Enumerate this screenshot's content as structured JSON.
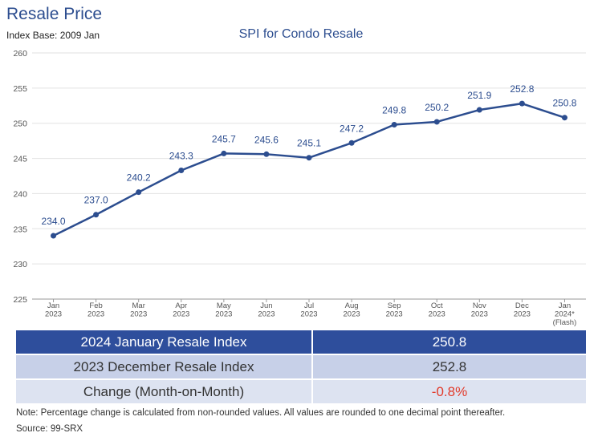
{
  "header": {
    "title": "Resale Price",
    "index_base": "Index Base: 2009 Jan"
  },
  "chart_data": {
    "type": "line",
    "title": "SPI for Condo Resale",
    "xlabel": "",
    "ylabel": "",
    "ylim": [
      225,
      260
    ],
    "yticks": [
      225,
      230,
      235,
      240,
      245,
      250,
      255,
      260
    ],
    "grid": true,
    "categories": [
      [
        "Jan",
        "2023"
      ],
      [
        "Feb",
        "2023"
      ],
      [
        "Mar",
        "2023"
      ],
      [
        "Apr",
        "2023"
      ],
      [
        "May",
        "2023"
      ],
      [
        "Jun",
        "2023"
      ],
      [
        "Jul",
        "2023"
      ],
      [
        "Aug",
        "2023"
      ],
      [
        "Sep",
        "2023"
      ],
      [
        "Oct",
        "2023"
      ],
      [
        "Nov",
        "2023"
      ],
      [
        "Dec",
        "2023"
      ],
      [
        "Jan",
        "2024*",
        "(Flash)"
      ]
    ],
    "series": [
      {
        "values": [
          234.0,
          237.0,
          240.2,
          243.3,
          245.7,
          245.6,
          245.1,
          247.2,
          249.8,
          250.2,
          251.9,
          252.8,
          250.8
        ],
        "labels": [
          "234.0",
          "237.0",
          "240.2",
          "243.3",
          "245.7",
          "245.6",
          "245.1",
          "247.2",
          "249.8",
          "250.2",
          "251.9",
          "252.8",
          "250.8"
        ],
        "color": "#2c4d8f"
      }
    ]
  },
  "summary_table": [
    {
      "label": "2024 January Resale Index",
      "value": "250.8"
    },
    {
      "label": "2023 December Resale Index",
      "value": "252.8"
    },
    {
      "label": "Change (Month-on-Month)",
      "value": "-0.8%"
    }
  ],
  "footer": {
    "note": "Note: Percentage change is calculated from non-rounded values.  All values are rounded to one decimal point thereafter.",
    "source": "Source: 99-SRX"
  }
}
